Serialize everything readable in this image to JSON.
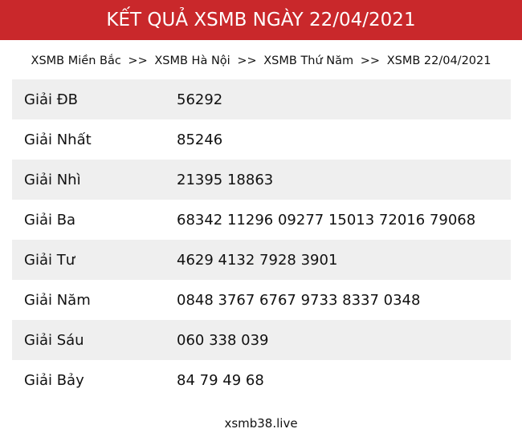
{
  "header": {
    "title": "KẾT QUẢ XSMB NGÀY 22/04/2021",
    "color": "#c9282b"
  },
  "breadcrumb": [
    {
      "label": "XSMB Miền Bắc"
    },
    {
      "label": "XSMB Hà Nội"
    },
    {
      "label": "XSMB Thứ Năm"
    },
    {
      "label": "XSMB 22/04/2021"
    }
  ],
  "breadcrumb_separator": ">>",
  "results": [
    {
      "label": "Giải ĐB",
      "value": "56292"
    },
    {
      "label": "Giải Nhất",
      "value": "85246"
    },
    {
      "label": "Giải Nhì",
      "value": "21395 18863"
    },
    {
      "label": "Giải Ba",
      "value": "68342 11296 09277 15013 72016 79068"
    },
    {
      "label": "Giải Tư",
      "value": "4629 4132 7928 3901"
    },
    {
      "label": "Giải Năm",
      "value": "0848 3767 6767 9733 8337 0348"
    },
    {
      "label": "Giải Sáu",
      "value": "060 338 039"
    },
    {
      "label": "Giải Bảy",
      "value": "84 79 49 68"
    }
  ],
  "footer": {
    "site": "xsmb38.live"
  }
}
